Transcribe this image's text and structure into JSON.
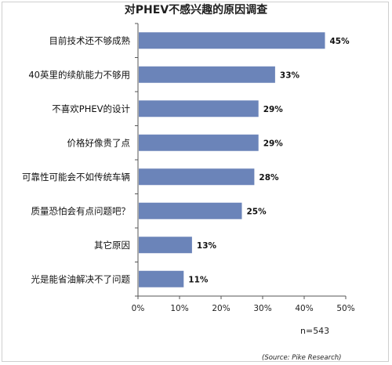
{
  "chart_data": {
    "type": "bar",
    "orientation": "horizontal",
    "title": "对PHEV不感兴趣的原因调查",
    "categories": [
      "目前技术还不够成熟",
      "40英里的续航能力不够用",
      "不喜欢PHEV的设计",
      "价格好像贵了点",
      "可靠性可能会不如传统车辆",
      "质量恐怕会有点问题吧？",
      "其它原因",
      "光是能省油解决不了问题"
    ],
    "values": [
      45,
      33,
      29,
      29,
      28,
      25,
      13,
      11
    ],
    "value_labels": [
      "45%",
      "33%",
      "29%",
      "29%",
      "28%",
      "25%",
      "13%",
      "11%"
    ],
    "xlim": [
      0,
      50
    ],
    "x_ticks": [
      "0%",
      "10%",
      "20%",
      "30%",
      "40%",
      "50%"
    ],
    "bar_color": "#6b84b9",
    "grid": false,
    "note": "n=543",
    "source": "(Source: Pike Research)"
  }
}
